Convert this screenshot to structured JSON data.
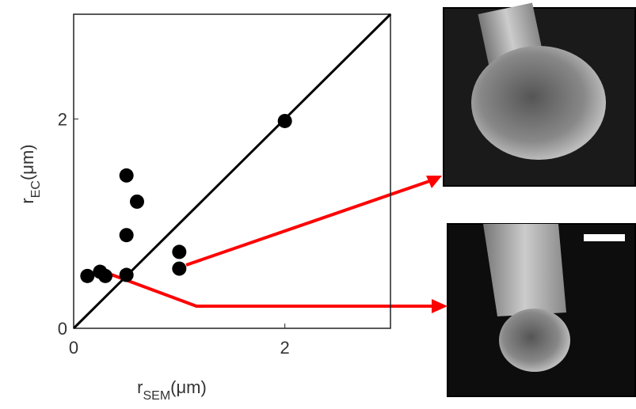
{
  "chart_data": {
    "type": "scatter",
    "xlabel": {
      "base": "r",
      "sub": "SEM",
      "unit": "(μm)"
    },
    "ylabel": {
      "base": "r",
      "sub": "EC",
      "unit": "(μm)"
    },
    "x": [
      0.13,
      0.25,
      0.3,
      0.5,
      0.6,
      0.5,
      0.5,
      1,
      1,
      2
    ],
    "values": [
      0.5,
      0.54,
      0.5,
      1.46,
      1.21,
      0.89,
      0.51,
      0.73,
      0.57,
      1.98
    ],
    "color": "#000000",
    "xlim": [
      0,
      3
    ],
    "ylim": [
      0,
      3
    ],
    "xticks": [
      0,
      2
    ],
    "yticks": [
      0,
      2
    ]
  }
}
